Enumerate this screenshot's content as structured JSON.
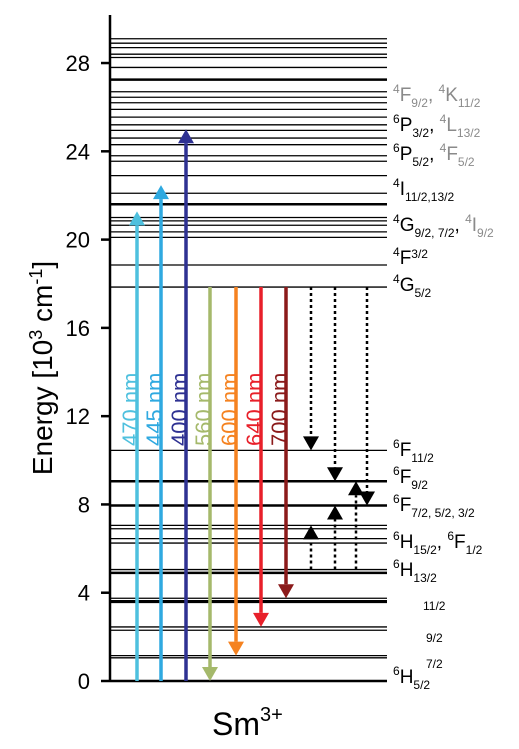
{
  "chart_data": {
    "type": "energy-level-diagram",
    "ion": {
      "base": "Sm",
      "sup": "3+"
    },
    "axis": {
      "ylabel_main": "Energy [10",
      "ylabel_exp3": "3",
      "ylabel_unit": " cm",
      "ylabel_exp_neg1": "-1",
      "ylabel_close": "]",
      "ylim": [
        0,
        30
      ],
      "ticks": [
        "0",
        "4",
        "8",
        "12",
        "16",
        "20",
        "24",
        "28"
      ]
    },
    "levels": [
      {
        "e": 0.0,
        "w": 2.5
      },
      {
        "e": 1.05,
        "w": 1.3
      },
      {
        "e": 1.15,
        "w": 1.3
      },
      {
        "e": 2.3,
        "w": 1.3
      },
      {
        "e": 2.45,
        "w": 1.3
      },
      {
        "e": 3.6,
        "w": 3.2
      },
      {
        "e": 3.75,
        "w": 1.3
      },
      {
        "e": 4.9,
        "w": 2.5
      },
      {
        "e": 5.05,
        "w": 1.3
      },
      {
        "e": 6.25,
        "w": 1.3
      },
      {
        "e": 6.45,
        "w": 1.3
      },
      {
        "e": 6.9,
        "w": 1.3
      },
      {
        "e": 7.05,
        "w": 1.3
      },
      {
        "e": 7.95,
        "w": 2.5
      },
      {
        "e": 9.05,
        "w": 2.5
      },
      {
        "e": 10.45,
        "w": 1.3
      },
      {
        "e": 17.85,
        "w": 1.3
      },
      {
        "e": 18.85,
        "w": 1.3
      },
      {
        "e": 20.1,
        "w": 1.3
      },
      {
        "e": 20.35,
        "w": 1.3
      },
      {
        "e": 20.65,
        "w": 1.3
      },
      {
        "e": 20.85,
        "w": 1.3
      },
      {
        "e": 21.0,
        "w": 1.3
      },
      {
        "e": 21.6,
        "w": 2.5
      },
      {
        "e": 22.1,
        "w": 1.3
      },
      {
        "e": 22.9,
        "w": 1.3
      },
      {
        "e": 23.55,
        "w": 1.3
      },
      {
        "e": 23.8,
        "w": 1.3
      },
      {
        "e": 24.3,
        "w": 1.3
      },
      {
        "e": 24.6,
        "w": 1.3
      },
      {
        "e": 24.95,
        "w": 1.3
      },
      {
        "e": 25.2,
        "w": 1.3
      },
      {
        "e": 25.55,
        "w": 1.3
      },
      {
        "e": 25.9,
        "w": 1.3
      },
      {
        "e": 26.2,
        "w": 1.3
      },
      {
        "e": 26.45,
        "w": 1.3
      },
      {
        "e": 26.7,
        "w": 1.3
      },
      {
        "e": 27.25,
        "w": 2.5
      },
      {
        "e": 27.8,
        "w": 1.3
      },
      {
        "e": 28.25,
        "w": 1.3
      },
      {
        "e": 28.4,
        "w": 1.3
      },
      {
        "e": 28.7,
        "w": 1.3
      },
      {
        "e": 28.9,
        "w": 1.3
      },
      {
        "e": 29.1,
        "w": 1.3
      }
    ],
    "excitation": [
      {
        "label": "470 nm",
        "color": "#4ec0de",
        "from": 0,
        "to": 21.28
      },
      {
        "label": "445 nm",
        "color": "#2fa9e0",
        "from": 0,
        "to": 22.47
      },
      {
        "label": "400 nm",
        "color": "#2e3192",
        "from": 0,
        "to": 25.0
      }
    ],
    "emission": [
      {
        "label": "560 nm",
        "color": "#a5b96b",
        "from": 17.85,
        "to": 0
      },
      {
        "label": "600 nm",
        "color": "#f58220",
        "from": 17.85,
        "to": 1.15
      },
      {
        "label": "640 nm",
        "color": "#e8202a",
        "from": 17.85,
        "to": 2.45
      },
      {
        "label": "700 nm",
        "color": "#8b1a1a",
        "from": 17.85,
        "to": 3.75
      }
    ],
    "nonradiative": [
      {
        "from": 17.85,
        "to": 10.45,
        "dir": "down"
      },
      {
        "from": 5.05,
        "to": 7.05,
        "dir": "up"
      },
      {
        "from": 17.85,
        "to": 9.05,
        "dir": "down"
      },
      {
        "from": 5.05,
        "to": 7.95,
        "dir": "up"
      },
      {
        "from": 5.05,
        "to": 9.05,
        "dir": "up"
      },
      {
        "from": 17.85,
        "to": 7.95,
        "dir": "down"
      }
    ],
    "term_labels": {
      "l1": {
        "a_sup": "4",
        "a_base": "F",
        "a_sub": "9/2",
        "sep": ", ",
        "b_sup": "4",
        "b_base": "K",
        "b_sub": "11/2",
        "color": "#8a8a8a"
      },
      "l2": {
        "a_sup": "6",
        "a_base": "P",
        "a_sub": "3/2",
        "sep": ", ",
        "b_sup": "4",
        "b_base": "L",
        "b_sub": "13/2",
        "color_a": "#000000",
        "color_b": "#8a8a8a"
      },
      "l3": {
        "a_sup": "6",
        "a_base": "P",
        "a_sub": "5/2",
        "sep": ", ",
        "b_sup": "4",
        "b_base": "F",
        "b_sub": "5/2",
        "color_a": "#000000",
        "color_b": "#8a8a8a"
      },
      "l4": {
        "a_sup": "4",
        "a_base": "I",
        "a_sub": "11/2,13/2"
      },
      "l5": {
        "a_sup": "4",
        "a_base": "G",
        "a_sub": "9/2, 7/2",
        "sep": ", ",
        "b_sup": "4",
        "b_base": "I",
        "b_sub": "9/2",
        "color_a": "#000000",
        "color_b": "#8a8a8a"
      },
      "l6": {
        "a_sup": "4",
        "a_base": "F",
        "a_sub": "3/2"
      },
      "l7": {
        "a_sup": "4",
        "a_base": "G",
        "a_sub": "5/2"
      },
      "l8": {
        "a_sup": "6",
        "a_base": "F",
        "a_sub": "11/2"
      },
      "l9": {
        "a_sup": "6",
        "a_base": "F",
        "a_sub": "9/2"
      },
      "l10": {
        "a_sup": "6",
        "a_base": "F",
        "a_sub": "7/2, 5/2, 3/2"
      },
      "l11": {
        "a_sup": "6",
        "a_base": "H",
        "a_sub": "15/2",
        "sep": ", ",
        "b_sup": "6",
        "b_base": "F",
        "b_sub": "1/2"
      },
      "l12": {
        "a_sup": "6",
        "a_base": "H",
        "a_sub": "13/2"
      },
      "l13": {
        "a_sub": "11/2"
      },
      "l14": {
        "a_sub": "9/2"
      },
      "l15": {
        "a_sub": "7/2"
      },
      "l16": {
        "a_sup": "6",
        "a_base": "H",
        "a_sub": "5/2"
      }
    }
  }
}
